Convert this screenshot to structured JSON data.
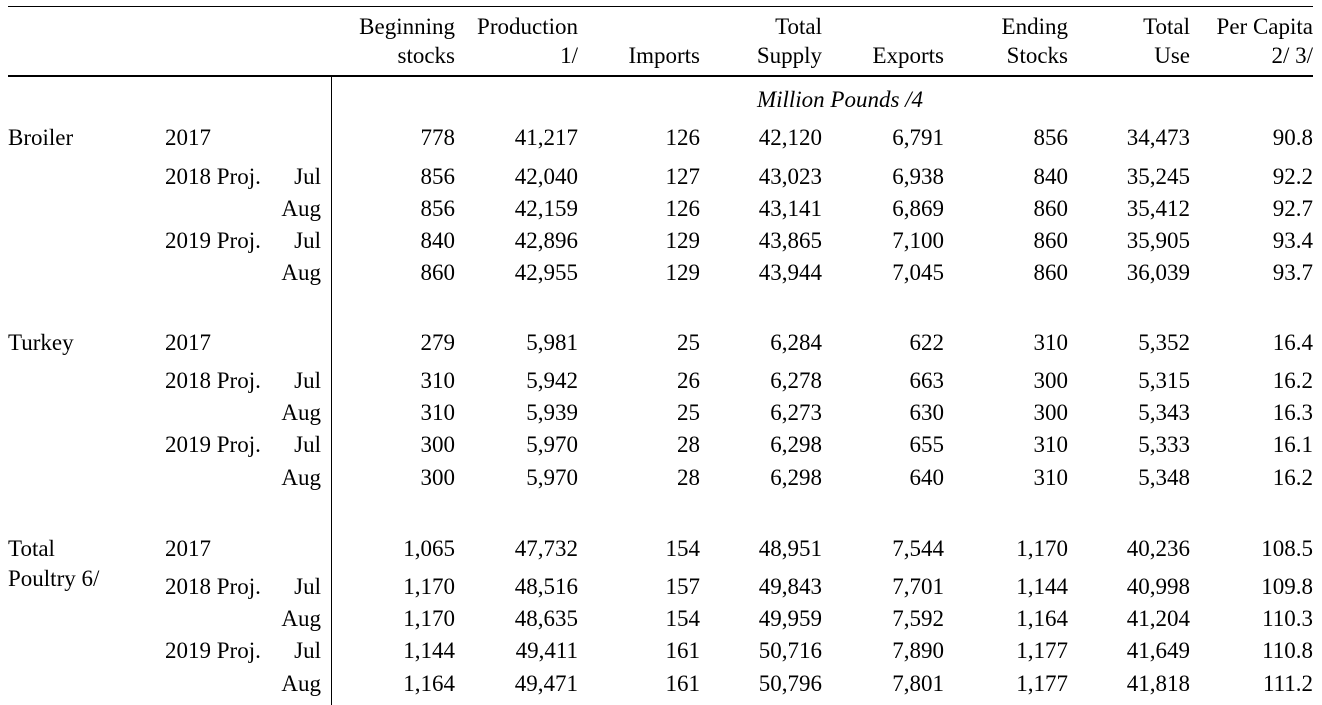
{
  "columns": [
    {
      "line1": "Beginning",
      "line2": "stocks"
    },
    {
      "line1": "Production",
      "line2": "1/"
    },
    {
      "line1": "",
      "line2": "Imports"
    },
    {
      "line1": "Total",
      "line2": "Supply"
    },
    {
      "line1": "",
      "line2": "Exports"
    },
    {
      "line1": "Ending",
      "line2": "Stocks"
    },
    {
      "line1": "Total",
      "line2": "Use"
    },
    {
      "line1": "Per Capita",
      "line2": "2/  3/"
    }
  ],
  "unit_label": "Million Pounds /4",
  "sections": [
    {
      "label_lines": [
        "Broiler",
        ""
      ],
      "rows": [
        {
          "period": "2017",
          "month": "",
          "values": [
            "778",
            "41,217",
            "126",
            "42,120",
            "6,791",
            "856",
            "34,473",
            "90.8"
          ]
        },
        {
          "period": "2018 Proj.",
          "month": "Jul",
          "values": [
            "856",
            "42,040",
            "127",
            "43,023",
            "6,938",
            "840",
            "35,245",
            "92.2"
          ]
        },
        {
          "period": "",
          "month": "Aug",
          "values": [
            "856",
            "42,159",
            "126",
            "43,141",
            "6,869",
            "860",
            "35,412",
            "92.7"
          ]
        },
        {
          "period": "2019 Proj.",
          "month": "Jul",
          "values": [
            "840",
            "42,896",
            "129",
            "43,865",
            "7,100",
            "860",
            "35,905",
            "93.4"
          ]
        },
        {
          "period": "",
          "month": "Aug",
          "values": [
            "860",
            "42,955",
            "129",
            "43,944",
            "7,045",
            "860",
            "36,039",
            "93.7"
          ]
        }
      ]
    },
    {
      "label_lines": [
        "Turkey",
        ""
      ],
      "rows": [
        {
          "period": "2017",
          "month": "",
          "values": [
            "279",
            "5,981",
            "25",
            "6,284",
            "622",
            "310",
            "5,352",
            "16.4"
          ]
        },
        {
          "period": "2018 Proj.",
          "month": "Jul",
          "values": [
            "310",
            "5,942",
            "26",
            "6,278",
            "663",
            "300",
            "5,315",
            "16.2"
          ]
        },
        {
          "period": "",
          "month": "Aug",
          "values": [
            "310",
            "5,939",
            "25",
            "6,273",
            "630",
            "300",
            "5,343",
            "16.3"
          ]
        },
        {
          "period": "2019 Proj.",
          "month": "Jul",
          "values": [
            "300",
            "5,970",
            "28",
            "6,298",
            "655",
            "310",
            "5,333",
            "16.1"
          ]
        },
        {
          "period": "",
          "month": "Aug",
          "values": [
            "300",
            "5,970",
            "28",
            "6,298",
            "640",
            "310",
            "5,348",
            "16.2"
          ]
        }
      ]
    },
    {
      "label_lines": [
        "Total",
        "Poultry 6/"
      ],
      "rows": [
        {
          "period": "2017",
          "month": "",
          "values": [
            "1,065",
            "47,732",
            "154",
            "48,951",
            "7,544",
            "1,170",
            "40,236",
            "108.5"
          ]
        },
        {
          "period": "2018 Proj.",
          "month": "Jul",
          "values": [
            "1,170",
            "48,516",
            "157",
            "49,843",
            "7,701",
            "1,144",
            "40,998",
            "109.8"
          ]
        },
        {
          "period": "",
          "month": "Aug",
          "values": [
            "1,170",
            "48,635",
            "154",
            "49,959",
            "7,592",
            "1,164",
            "41,204",
            "110.3"
          ]
        },
        {
          "period": "2019 Proj.",
          "month": "Jul",
          "values": [
            "1,144",
            "49,411",
            "161",
            "50,716",
            "7,890",
            "1,177",
            "41,649",
            "110.8"
          ]
        },
        {
          "period": "",
          "month": "Aug",
          "values": [
            "1,164",
            "49,471",
            "161",
            "50,796",
            "7,801",
            "1,177",
            "41,818",
            "111.2"
          ]
        }
      ]
    }
  ]
}
